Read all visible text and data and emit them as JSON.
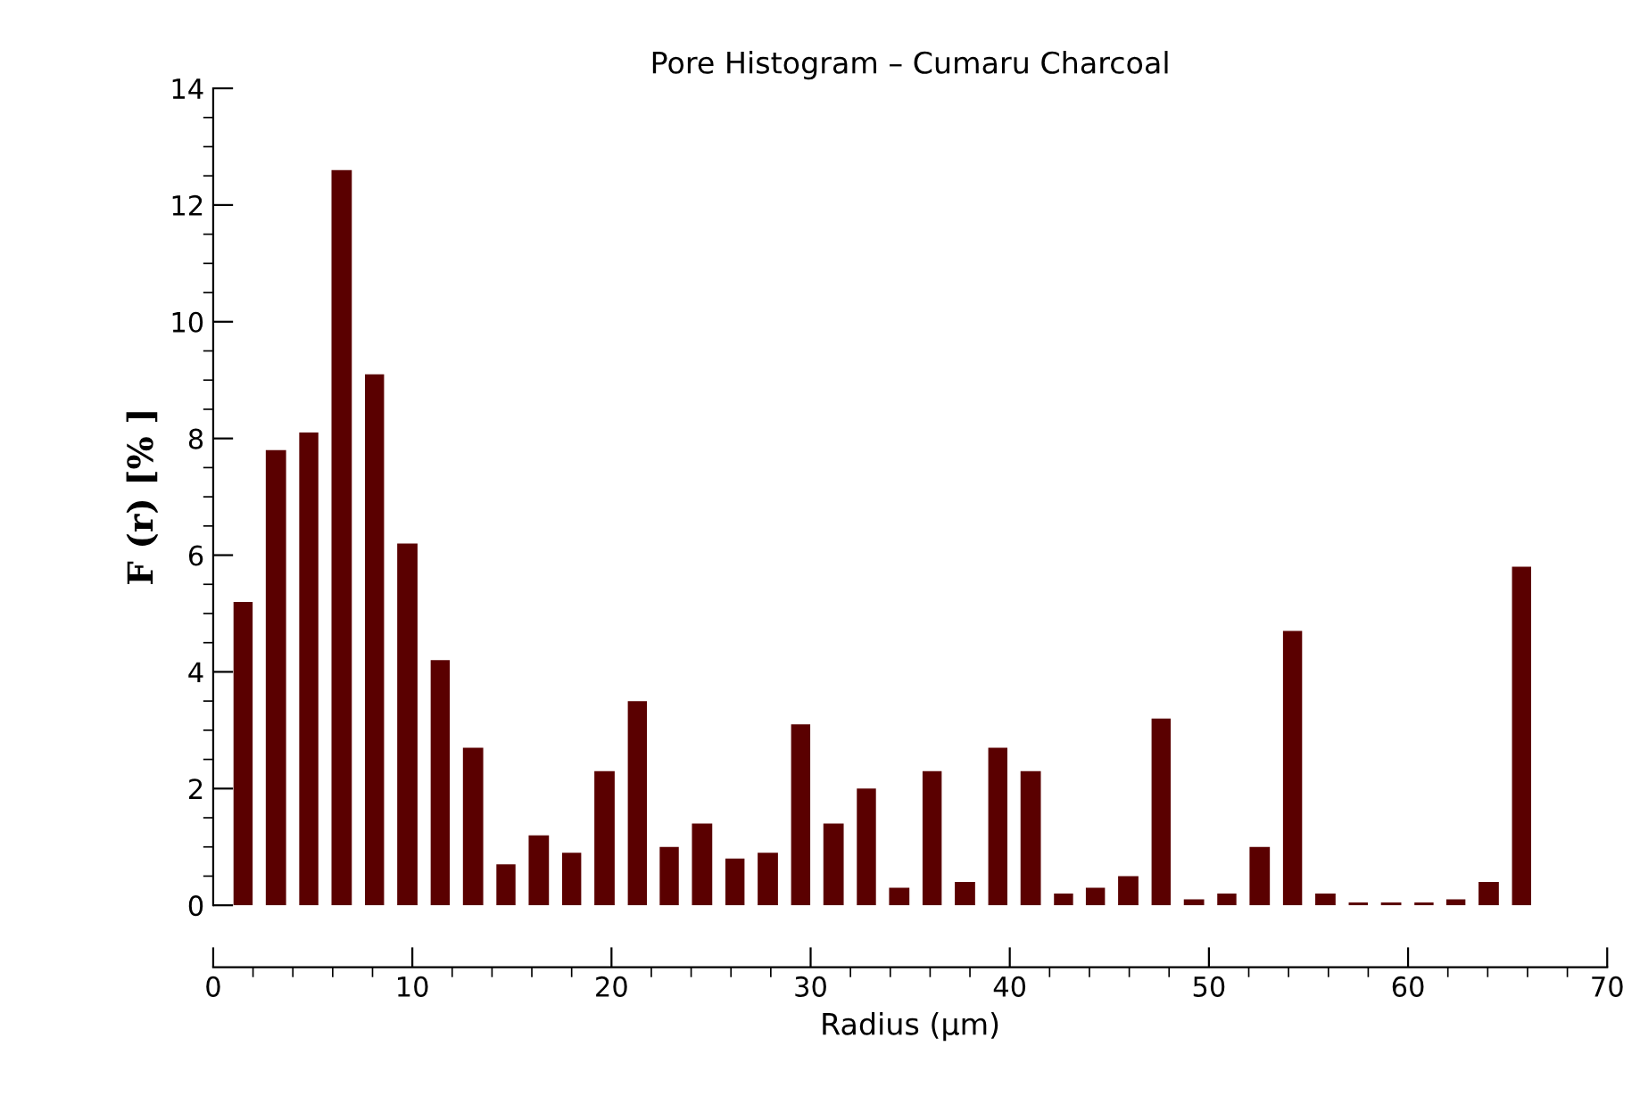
{
  "chart_data": {
    "type": "histogram",
    "title": "Pore Histogram – Cumaru Charcoal",
    "xlabel": "Radius (µm)",
    "ylabel": "F (r) [% ]",
    "bins": [
      0.7,
      2.3,
      4.0,
      5.6,
      7.3,
      8.9,
      10.6,
      12.2,
      13.9,
      15.5,
      17.2,
      18.8,
      20.5,
      22.1,
      23.7,
      25.4,
      27.0,
      28.7,
      30.3,
      32.0,
      33.6,
      35.3,
      36.9,
      38.6,
      40.2,
      41.9,
      43.5,
      45.1,
      46.8,
      48.4,
      50.1,
      51.7,
      53.4,
      55.0,
      56.7,
      58.3,
      60.0,
      61.6,
      63.2,
      64.9,
      66.5
    ],
    "values": [
      5.2,
      7.8,
      8.1,
      12.6,
      9.1,
      6.2,
      4.2,
      2.7,
      0.7,
      1.2,
      0.9,
      2.3,
      3.5,
      1.0,
      1.4,
      0.8,
      0.9,
      3.1,
      1.4,
      2.0,
      0.3,
      2.3,
      0.4,
      2.7,
      2.3,
      0.2,
      0.3,
      0.5,
      3.2,
      0.1,
      0.2,
      1.0,
      4.7,
      0.2,
      0.05,
      0.05,
      0.05,
      0.1,
      0.4,
      5.8
    ],
    "color": "#5a0000",
    "xlim": [
      0,
      70
    ],
    "xticks": [
      0,
      10,
      20,
      30,
      40,
      50,
      60,
      70
    ],
    "ylim": [
      0,
      14
    ],
    "yticks": [
      0,
      2,
      4,
      6,
      8,
      10,
      12,
      14
    ],
    "grid": false,
    "legend": false
  }
}
